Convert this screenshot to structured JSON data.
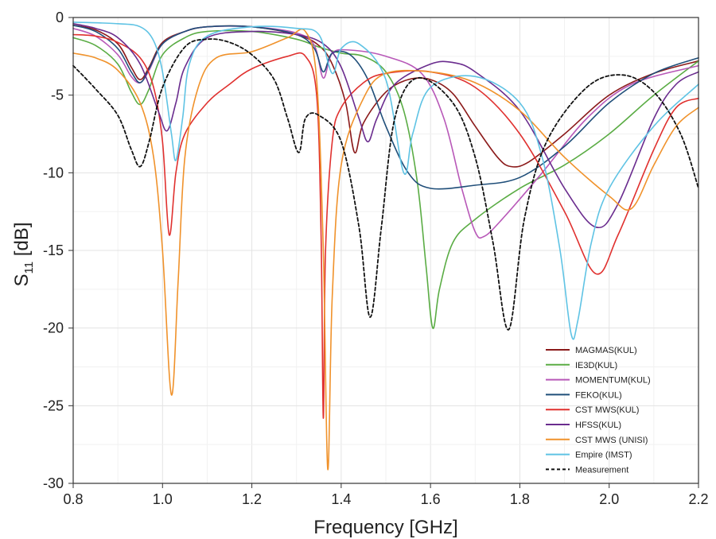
{
  "chart_data": {
    "type": "line",
    "xlabel": "Frequency [GHz]",
    "ylabel": {
      "main": "S",
      "sub": "11",
      "unit": " [dB]"
    },
    "xlim": [
      0.8,
      2.2
    ],
    "ylim": [
      -30,
      0
    ],
    "xticks": [
      0.8,
      1.0,
      1.2,
      1.4,
      1.6,
      1.8,
      2.0,
      2.2
    ],
    "xtick_labels": [
      "0.8",
      "1.0",
      "1.2",
      "1.4",
      "1.6",
      "1.8",
      "2.0",
      "2.2"
    ],
    "yticks": [
      0,
      -5,
      -10,
      -15,
      -20,
      -25,
      -30
    ],
    "ytick_labels": [
      "0",
      "-5",
      "-10",
      "-15",
      "-20",
      "-25",
      "-30"
    ],
    "grid": true,
    "legend_position": "bottom-right",
    "series": [
      {
        "name": "MAGMAS(KUL)",
        "color": "#8b1a1a",
        "dash": "solid",
        "points": [
          [
            0.8,
            -0.5
          ],
          [
            0.85,
            -0.8
          ],
          [
            0.9,
            -1.7
          ],
          [
            0.93,
            -3.2
          ],
          [
            0.95,
            -4.0
          ],
          [
            0.97,
            -3.2
          ],
          [
            1.0,
            -1.6
          ],
          [
            1.05,
            -0.9
          ],
          [
            1.1,
            -0.6
          ],
          [
            1.2,
            -0.6
          ],
          [
            1.3,
            -1.1
          ],
          [
            1.35,
            -1.8
          ],
          [
            1.38,
            -3.0
          ],
          [
            1.41,
            -5.5
          ],
          [
            1.43,
            -8.7
          ],
          [
            1.45,
            -6.8
          ],
          [
            1.5,
            -4.8
          ],
          [
            1.55,
            -4.0
          ],
          [
            1.6,
            -4.0
          ],
          [
            1.65,
            -4.9
          ],
          [
            1.7,
            -7.0
          ],
          [
            1.75,
            -9.0
          ],
          [
            1.78,
            -9.6
          ],
          [
            1.82,
            -9.3
          ],
          [
            1.9,
            -7.5
          ],
          [
            2.0,
            -5.0
          ],
          [
            2.1,
            -3.6
          ],
          [
            2.2,
            -2.8
          ]
        ]
      },
      {
        "name": "IE3D(KUL)",
        "color": "#5aac44",
        "dash": "solid",
        "points": [
          [
            0.8,
            -1.3
          ],
          [
            0.85,
            -1.8
          ],
          [
            0.9,
            -3.0
          ],
          [
            0.93,
            -4.8
          ],
          [
            0.95,
            -5.6
          ],
          [
            0.97,
            -4.6
          ],
          [
            1.0,
            -2.4
          ],
          [
            1.05,
            -1.3
          ],
          [
            1.1,
            -0.9
          ],
          [
            1.2,
            -0.9
          ],
          [
            1.3,
            -1.4
          ],
          [
            1.35,
            -1.9
          ],
          [
            1.4,
            -2.3
          ],
          [
            1.45,
            -2.5
          ],
          [
            1.5,
            -3.5
          ],
          [
            1.54,
            -6.0
          ],
          [
            1.57,
            -10.5
          ],
          [
            1.59,
            -16.0
          ],
          [
            1.605,
            -20.0
          ],
          [
            1.62,
            -17.5
          ],
          [
            1.65,
            -14.5
          ],
          [
            1.7,
            -13.0
          ],
          [
            1.8,
            -11.0
          ],
          [
            1.9,
            -9.5
          ],
          [
            2.0,
            -7.5
          ],
          [
            2.1,
            -5.0
          ],
          [
            2.2,
            -2.8
          ]
        ]
      },
      {
        "name": "MOMENTUM(KUL)",
        "color": "#b858b8",
        "dash": "solid",
        "points": [
          [
            0.8,
            -0.7
          ],
          [
            0.85,
            -1.2
          ],
          [
            0.9,
            -2.4
          ],
          [
            0.93,
            -3.8
          ],
          [
            0.95,
            -4.2
          ],
          [
            0.97,
            -3.4
          ],
          [
            1.0,
            -1.7
          ],
          [
            1.05,
            -0.9
          ],
          [
            1.1,
            -0.6
          ],
          [
            1.2,
            -0.6
          ],
          [
            1.3,
            -1.0
          ],
          [
            1.34,
            -1.8
          ],
          [
            1.36,
            -3.9
          ],
          [
            1.38,
            -2.3
          ],
          [
            1.42,
            -2.1
          ],
          [
            1.5,
            -2.5
          ],
          [
            1.58,
            -3.6
          ],
          [
            1.63,
            -6.5
          ],
          [
            1.67,
            -11.0
          ],
          [
            1.7,
            -13.8
          ],
          [
            1.72,
            -14.1
          ],
          [
            1.76,
            -13.0
          ],
          [
            1.85,
            -10.0
          ],
          [
            1.95,
            -6.5
          ],
          [
            2.05,
            -4.3
          ],
          [
            2.2,
            -3.1
          ]
        ]
      },
      {
        "name": "FEKO(KUL)",
        "color": "#1f4e79",
        "dash": "solid",
        "points": [
          [
            0.8,
            -0.5
          ],
          [
            0.85,
            -0.9
          ],
          [
            0.9,
            -2.0
          ],
          [
            0.93,
            -3.5
          ],
          [
            0.95,
            -4.2
          ],
          [
            0.97,
            -3.3
          ],
          [
            1.0,
            -1.7
          ],
          [
            1.05,
            -0.9
          ],
          [
            1.1,
            -0.6
          ],
          [
            1.2,
            -0.6
          ],
          [
            1.3,
            -1.1
          ],
          [
            1.34,
            -2.0
          ],
          [
            1.36,
            -3.5
          ],
          [
            1.38,
            -2.3
          ],
          [
            1.42,
            -2.4
          ],
          [
            1.46,
            -4.0
          ],
          [
            1.5,
            -7.0
          ],
          [
            1.55,
            -10.0
          ],
          [
            1.6,
            -11.0
          ],
          [
            1.7,
            -10.8
          ],
          [
            1.8,
            -10.3
          ],
          [
            1.9,
            -8.3
          ],
          [
            2.0,
            -5.5
          ],
          [
            2.1,
            -3.6
          ],
          [
            2.2,
            -2.6
          ]
        ]
      },
      {
        "name": "CST MWS(KUL)",
        "color": "#e0312f",
        "dash": "solid",
        "points": [
          [
            0.8,
            -1.1
          ],
          [
            0.85,
            -1.2
          ],
          [
            0.9,
            -1.6
          ],
          [
            0.95,
            -2.6
          ],
          [
            0.98,
            -4.5
          ],
          [
            1.0,
            -8.0
          ],
          [
            1.015,
            -14.0
          ],
          [
            1.03,
            -10.0
          ],
          [
            1.05,
            -7.5
          ],
          [
            1.1,
            -5.5
          ],
          [
            1.15,
            -4.3
          ],
          [
            1.2,
            -3.3
          ],
          [
            1.28,
            -2.5
          ],
          [
            1.32,
            -2.5
          ],
          [
            1.345,
            -5.0
          ],
          [
            1.355,
            -14.0
          ],
          [
            1.36,
            -25.8
          ],
          [
            1.365,
            -15.0
          ],
          [
            1.38,
            -8.0
          ],
          [
            1.4,
            -5.8
          ],
          [
            1.45,
            -4.2
          ],
          [
            1.5,
            -3.6
          ],
          [
            1.6,
            -3.5
          ],
          [
            1.7,
            -4.5
          ],
          [
            1.8,
            -7.5
          ],
          [
            1.9,
            -12.5
          ],
          [
            1.97,
            -16.5
          ],
          [
            2.02,
            -14.0
          ],
          [
            2.1,
            -8.5
          ],
          [
            2.15,
            -5.8
          ],
          [
            2.2,
            -5.2
          ]
        ]
      },
      {
        "name": "HFSS(KUL)",
        "color": "#6a2c8e",
        "dash": "solid",
        "points": [
          [
            0.8,
            -0.4
          ],
          [
            0.85,
            -0.7
          ],
          [
            0.9,
            -1.3
          ],
          [
            0.95,
            -3.0
          ],
          [
            0.99,
            -6.0
          ],
          [
            1.01,
            -7.3
          ],
          [
            1.03,
            -5.5
          ],
          [
            1.05,
            -3.2
          ],
          [
            1.1,
            -1.3
          ],
          [
            1.2,
            -0.9
          ],
          [
            1.3,
            -1.1
          ],
          [
            1.36,
            -1.7
          ],
          [
            1.4,
            -3.2
          ],
          [
            1.44,
            -6.5
          ],
          [
            1.46,
            -8.0
          ],
          [
            1.48,
            -6.5
          ],
          [
            1.52,
            -4.3
          ],
          [
            1.6,
            -3.0
          ],
          [
            1.65,
            -2.9
          ],
          [
            1.7,
            -3.5
          ],
          [
            1.8,
            -6.0
          ],
          [
            1.9,
            -11.0
          ],
          [
            1.97,
            -13.5
          ],
          [
            2.02,
            -12.0
          ],
          [
            2.1,
            -6.5
          ],
          [
            2.15,
            -4.3
          ],
          [
            2.2,
            -3.5
          ]
        ]
      },
      {
        "name": "CST MWS (UNISI)",
        "color": "#f0922b",
        "dash": "solid",
        "points": [
          [
            0.8,
            -2.3
          ],
          [
            0.85,
            -2.6
          ],
          [
            0.9,
            -3.4
          ],
          [
            0.95,
            -5.5
          ],
          [
            0.98,
            -9.0
          ],
          [
            1.0,
            -15.0
          ],
          [
            1.02,
            -24.3
          ],
          [
            1.035,
            -17.0
          ],
          [
            1.05,
            -9.0
          ],
          [
            1.08,
            -4.5
          ],
          [
            1.12,
            -2.6
          ],
          [
            1.2,
            -2.2
          ],
          [
            1.28,
            -1.3
          ],
          [
            1.32,
            -0.9
          ],
          [
            1.345,
            -4.0
          ],
          [
            1.36,
            -15.0
          ],
          [
            1.37,
            -29.1
          ],
          [
            1.38,
            -18.0
          ],
          [
            1.4,
            -9.5
          ],
          [
            1.45,
            -5.2
          ],
          [
            1.5,
            -3.6
          ],
          [
            1.6,
            -3.5
          ],
          [
            1.7,
            -4.2
          ],
          [
            1.8,
            -6.0
          ],
          [
            1.9,
            -9.0
          ],
          [
            2.0,
            -11.5
          ],
          [
            2.05,
            -12.3
          ],
          [
            2.1,
            -9.5
          ],
          [
            2.15,
            -7.0
          ],
          [
            2.2,
            -5.8
          ]
        ]
      },
      {
        "name": "Empire (IMST)",
        "color": "#5fc3e4",
        "dash": "solid",
        "points": [
          [
            0.8,
            -0.3
          ],
          [
            0.9,
            -0.4
          ],
          [
            0.95,
            -0.6
          ],
          [
            0.98,
            -1.5
          ],
          [
            1.0,
            -3.5
          ],
          [
            1.02,
            -7.5
          ],
          [
            1.03,
            -9.2
          ],
          [
            1.045,
            -6.5
          ],
          [
            1.06,
            -3.0
          ],
          [
            1.1,
            -1.2
          ],
          [
            1.2,
            -0.6
          ],
          [
            1.3,
            -0.7
          ],
          [
            1.35,
            -1.1
          ],
          [
            1.38,
            -3.6
          ],
          [
            1.4,
            -2.0
          ],
          [
            1.44,
            -1.7
          ],
          [
            1.5,
            -4.0
          ],
          [
            1.54,
            -10.0
          ],
          [
            1.56,
            -7.5
          ],
          [
            1.6,
            -4.5
          ],
          [
            1.7,
            -3.8
          ],
          [
            1.8,
            -5.5
          ],
          [
            1.85,
            -9.0
          ],
          [
            1.89,
            -15.0
          ],
          [
            1.915,
            -20.4
          ],
          [
            1.93,
            -19.5
          ],
          [
            1.96,
            -14.5
          ],
          [
            2.0,
            -11.0
          ],
          [
            2.1,
            -7.0
          ],
          [
            2.2,
            -4.3
          ]
        ]
      },
      {
        "name": "Measurement",
        "color": "#111111",
        "dash": "dashed",
        "points": [
          [
            0.8,
            -3.1
          ],
          [
            0.85,
            -4.6
          ],
          [
            0.9,
            -6.3
          ],
          [
            0.93,
            -8.5
          ],
          [
            0.95,
            -9.6
          ],
          [
            0.97,
            -8.0
          ],
          [
            1.0,
            -4.5
          ],
          [
            1.05,
            -1.9
          ],
          [
            1.1,
            -1.4
          ],
          [
            1.15,
            -1.6
          ],
          [
            1.2,
            -2.4
          ],
          [
            1.25,
            -4.0
          ],
          [
            1.28,
            -6.5
          ],
          [
            1.305,
            -8.7
          ],
          [
            1.32,
            -6.5
          ],
          [
            1.35,
            -6.3
          ],
          [
            1.4,
            -8.0
          ],
          [
            1.44,
            -13.5
          ],
          [
            1.465,
            -19.3
          ],
          [
            1.49,
            -13.5
          ],
          [
            1.52,
            -6.5
          ],
          [
            1.57,
            -3.9
          ],
          [
            1.65,
            -5.5
          ],
          [
            1.7,
            -9.0
          ],
          [
            1.74,
            -14.5
          ],
          [
            1.775,
            -20.1
          ],
          [
            1.81,
            -13.0
          ],
          [
            1.86,
            -8.0
          ],
          [
            1.95,
            -4.5
          ],
          [
            2.03,
            -3.7
          ],
          [
            2.1,
            -4.8
          ],
          [
            2.16,
            -7.5
          ],
          [
            2.2,
            -11.0
          ]
        ]
      }
    ]
  }
}
